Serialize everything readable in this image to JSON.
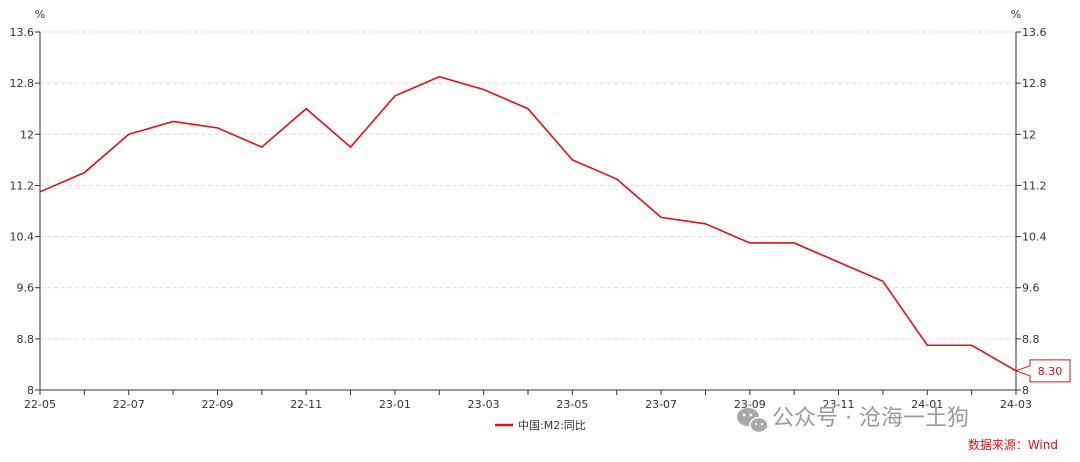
{
  "chart_data": {
    "type": "line",
    "x": [
      "22-05",
      "22-06",
      "22-07",
      "22-08",
      "22-09",
      "22-10",
      "22-11",
      "22-12",
      "23-01",
      "23-02",
      "23-03",
      "23-04",
      "23-05",
      "23-06",
      "23-07",
      "23-08",
      "23-09",
      "23-10",
      "23-11",
      "23-12",
      "24-01",
      "24-02",
      "24-03"
    ],
    "x_tick_labels": [
      "22-05",
      "22-07",
      "22-09",
      "22-11",
      "23-01",
      "23-03",
      "23-05",
      "23-07",
      "23-09",
      "23-11",
      "24-01",
      "24-03"
    ],
    "series": [
      {
        "name": "中国:M2:同比",
        "color": "#e0101a",
        "values": [
          11.1,
          11.4,
          12.0,
          12.2,
          12.1,
          11.8,
          12.4,
          11.8,
          12.6,
          12.9,
          12.7,
          12.4,
          11.6,
          11.3,
          10.7,
          10.6,
          10.3,
          10.3,
          10.0,
          9.7,
          8.7,
          8.7,
          8.3
        ]
      }
    ],
    "y_ticks": [
      "8",
      "8.8",
      "9.6",
      "10.4",
      "11.2",
      "12",
      "12.8",
      "13.6"
    ],
    "ylim": [
      8,
      13.6
    ],
    "y_unit_left": "%",
    "y_unit_right": "%",
    "grid": true,
    "end_label": "8.30",
    "legend_position": "bottom"
  },
  "source": "数据来源：Wind",
  "watermark": "公众号 · 沧海一土狗"
}
